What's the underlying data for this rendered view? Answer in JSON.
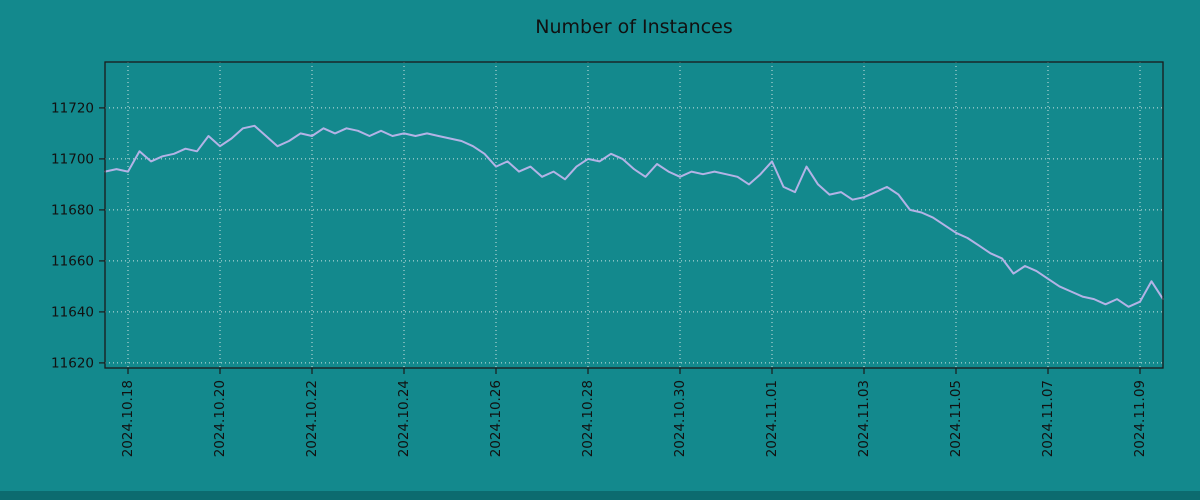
{
  "chart_data": {
    "type": "line",
    "title": "Number of Instances",
    "xlabel": "",
    "ylabel": "",
    "grid": true,
    "legend_position": "none",
    "ylim": [
      11618,
      11738
    ],
    "y_ticks": [
      11620,
      11640,
      11660,
      11680,
      11700,
      11720
    ],
    "x_tick_labels": [
      "2024.10.18",
      "2024.10.20",
      "2024.10.22",
      "2024.10.24",
      "2024.10.26",
      "2024.10.28",
      "2024.10.30",
      "2024.11.01",
      "2024.11.03",
      "2024.11.05",
      "2024.11.07",
      "2024.11.09"
    ],
    "x_tick_indices": [
      2,
      10,
      18,
      26,
      34,
      42,
      50,
      58,
      66,
      74,
      82,
      90
    ],
    "series": [
      {
        "name": "instances",
        "values": [
          11695,
          11696,
          11695,
          11703,
          11699,
          11701,
          11702,
          11704,
          11703,
          11709,
          11705,
          11708,
          11712,
          11713,
          11709,
          11705,
          11707,
          11710,
          11709,
          11712,
          11710,
          11712,
          11711,
          11709,
          11711,
          11709,
          11710,
          11709,
          11710,
          11709,
          11708,
          11707,
          11705,
          11702,
          11697,
          11699,
          11695,
          11697,
          11693,
          11695,
          11692,
          11697,
          11700,
          11699,
          11702,
          11700,
          11696,
          11693,
          11698,
          11695,
          11693,
          11695,
          11694,
          11695,
          11694,
          11693,
          11690,
          11694,
          11699,
          11689,
          11687,
          11697,
          11690,
          11686,
          11687,
          11684,
          11685,
          11687,
          11689,
          11686,
          11680,
          11679,
          11677,
          11674,
          11671,
          11669,
          11666,
          11663,
          11661,
          11655,
          11658,
          11656,
          11653,
          11650,
          11648,
          11646,
          11645,
          11643,
          11645,
          11642,
          11644,
          11652,
          11645
        ]
      }
    ],
    "colors": {
      "background": "#13898d",
      "bottom_edge": "#0c6b6f",
      "line": "#b3b3e6",
      "grid": "#cfe4e4",
      "text": "#111111",
      "frame": "#1a1a1a"
    }
  }
}
